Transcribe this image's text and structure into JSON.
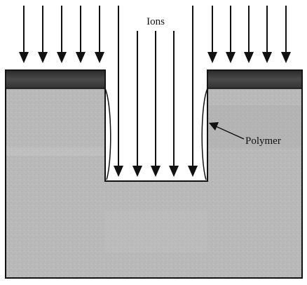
{
  "labels": {
    "ions": "Ions",
    "polymer": "Polymer"
  },
  "arrows": {
    "left_count": 5,
    "center_count": 5,
    "right_count": 5
  },
  "colors": {
    "substrate": "#b9b9b9",
    "mask": "#3a3a3a",
    "arrow": "#111111",
    "outline": "#111111"
  }
}
